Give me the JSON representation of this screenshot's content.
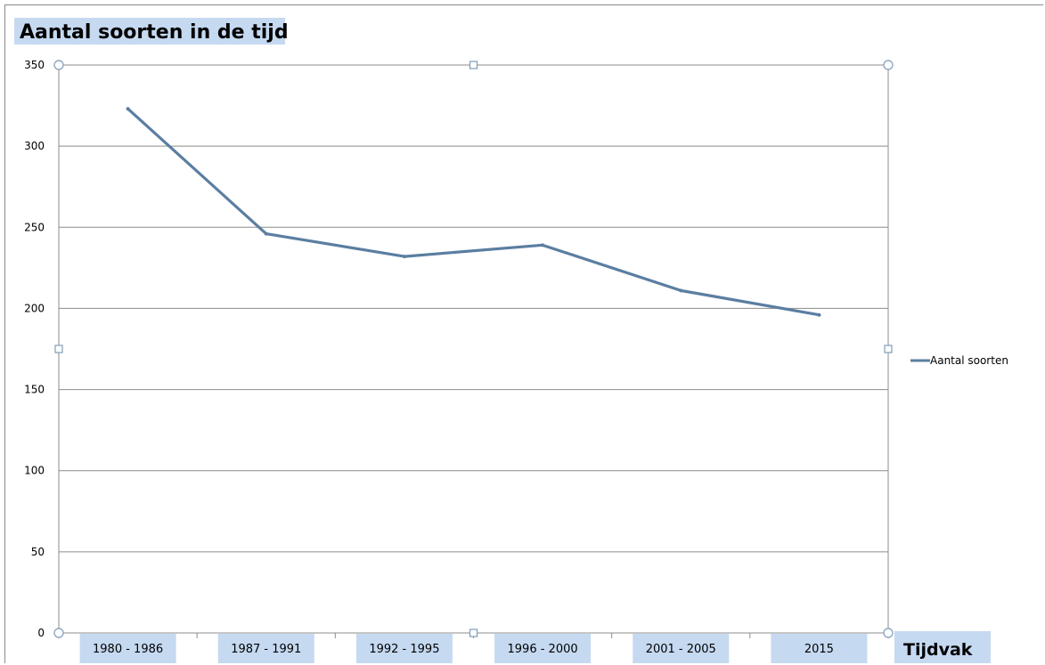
{
  "chart_data": {
    "type": "line",
    "title": "Aantal soorten in de tijd",
    "xlabel": "Tijdvak",
    "ylabel": "",
    "categories": [
      "1980 - 1986",
      "1987 - 1991",
      "1992 - 1995",
      "1996 - 2000",
      "2001 - 2005",
      "2015"
    ],
    "series": [
      {
        "name": "Aantal soorten",
        "values": [
          323,
          246,
          232,
          239,
          211,
          196
        ],
        "color": "#5b7ea1"
      }
    ],
    "ylim": [
      0,
      350
    ],
    "yticks": [
      0,
      50,
      100,
      150,
      200,
      250,
      300,
      350
    ],
    "grid": true,
    "legend_position": "right"
  }
}
